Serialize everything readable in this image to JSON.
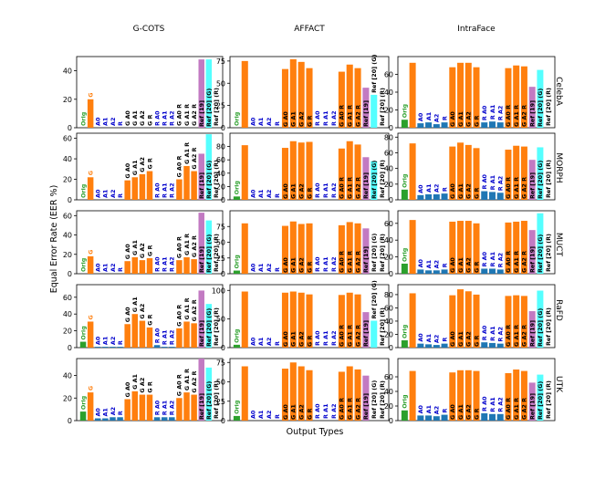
{
  "chart_data": {
    "type": "bar",
    "xlabel": "Output Types",
    "ylabel": "Equal Error Rate (EER %)",
    "columns": [
      "G-COTS",
      "AFFACT",
      "IntraFace"
    ],
    "rows": [
      "CelebA",
      "MORPH",
      "MUCT",
      "RaFD",
      "UTK"
    ],
    "categories": [
      "Orig",
      "G",
      "A0",
      "A1",
      "A2",
      "R",
      "G A0",
      "G A1",
      "G A2",
      "G R",
      "R A0",
      "R A1",
      "R A2",
      "G A0 R",
      "G A1 R",
      "G A2 R",
      "Ref [19]",
      "Ref [20] (G)",
      "Ref [20] (R)"
    ],
    "category_colors": {
      "Orig": "#2ca02c",
      "G": "#ff7f0e",
      "A0": "#1f77b4",
      "A1": "#1f77b4",
      "A2": "#1f77b4",
      "R": "#1f77b4",
      "G A0": "#ff7f0e",
      "G A1": "#ff7f0e",
      "G A2": "#ff7f0e",
      "G R": "#ff7f0e",
      "R A0": "#1f77b4",
      "R A1": "#1f77b4",
      "R A2": "#1f77b4",
      "G A0 R": "#ff7f0e",
      "G A1 R": "#ff7f0e",
      "G A2 R": "#ff7f0e",
      "Ref [19]": "#c27ac2",
      "Ref [20] (G)": "#55ffff",
      "Ref [20] (R)": "#55ffff"
    },
    "label_colors": {
      "Orig": "#2ca02c",
      "G": "#ff7f0e",
      "A0": "#0000cc",
      "A1": "#0000cc",
      "A2": "#0000cc",
      "R": "#0000cc",
      "G A0": "#000000",
      "G A1": "#000000",
      "G A2": "#000000",
      "G R": "#000000",
      "R A0": "#0000cc",
      "R A1": "#0000cc",
      "R A2": "#0000cc",
      "G A0 R": "#000000",
      "G A1 R": "#000000",
      "G A2 R": "#000000",
      "Ref [19]": "#000000",
      "Ref [20] (G)": "#000000",
      "Ref [20] (R)": "#000000"
    },
    "panels": [
      {
        "row": "CelebA",
        "col": "G-COTS",
        "ylim": [
          0,
          50
        ],
        "yticks": [
          0,
          20,
          40
        ],
        "values": [
          0,
          20,
          0,
          0,
          0,
          0,
          0,
          0,
          0,
          0,
          0,
          0,
          0,
          0,
          0,
          0,
          48,
          48,
          0
        ]
      },
      {
        "row": "CelebA",
        "col": "AFFACT",
        "ylim": [
          0,
          80
        ],
        "yticks": [
          0,
          25,
          50,
          75
        ],
        "values": [
          0,
          75,
          0,
          0,
          0,
          0,
          66,
          77,
          74,
          67,
          0,
          0,
          0,
          63,
          71,
          67,
          45,
          37,
          0
        ]
      },
      {
        "row": "CelebA",
        "col": "IntraFace",
        "ylim": [
          0,
          80
        ],
        "yticks": [
          0,
          20,
          40,
          60
        ],
        "values": [
          9,
          73,
          5,
          6,
          4,
          6,
          68,
          73,
          73,
          68,
          6,
          7,
          6,
          67,
          70,
          69,
          46,
          65,
          0
        ]
      },
      {
        "row": "MORPH",
        "col": "G-COTS",
        "ylim": [
          0,
          65
        ],
        "yticks": [
          0,
          20,
          40,
          60
        ],
        "values": [
          0,
          22,
          0,
          0,
          0,
          0,
          19,
          22,
          25,
          28,
          0,
          0,
          0,
          20,
          33,
          28,
          45,
          64,
          0
        ]
      },
      {
        "row": "MORPH",
        "col": "AFFACT",
        "ylim": [
          0,
          100
        ],
        "yticks": [
          0,
          20,
          40,
          60,
          80
        ],
        "values": [
          5,
          82,
          0,
          0,
          0,
          0,
          78,
          88,
          86,
          87,
          0,
          0,
          0,
          77,
          88,
          83,
          64,
          58,
          0
        ]
      },
      {
        "row": "MORPH",
        "col": "IntraFace",
        "ylim": [
          0,
          85
        ],
        "yticks": [
          0,
          20,
          40,
          60,
          80
        ],
        "values": [
          13,
          72,
          6,
          7,
          7,
          8,
          68,
          73,
          70,
          66,
          11,
          10,
          9,
          64,
          69,
          68,
          51,
          67,
          0
        ]
      },
      {
        "row": "MUCT",
        "col": "G-COTS",
        "ylim": [
          0,
          65
        ],
        "yticks": [
          0,
          20,
          40,
          60
        ],
        "values": [
          0,
          18,
          0,
          0,
          0,
          0,
          13,
          17,
          14,
          16,
          0,
          0,
          0,
          14,
          17,
          15,
          63,
          55,
          0
        ]
      },
      {
        "row": "MUCT",
        "col": "AFFACT",
        "ylim": [
          0,
          100
        ],
        "yticks": [
          0,
          25,
          50,
          75
        ],
        "values": [
          5,
          80,
          0,
          0,
          0,
          0,
          76,
          83,
          79,
          80,
          0,
          0,
          0,
          77,
          82,
          80,
          72,
          0,
          0
        ]
      },
      {
        "row": "MUCT",
        "col": "IntraFace",
        "ylim": [
          0,
          75
        ],
        "yticks": [
          0,
          20,
          40,
          60
        ],
        "values": [
          12,
          64,
          5,
          4,
          4,
          5,
          62,
          63,
          63,
          60,
          6,
          6,
          5,
          61,
          62,
          63,
          52,
          72,
          0
        ]
      },
      {
        "row": "RaFD",
        "col": "G-COTS",
        "ylim": [
          0,
          75
        ],
        "yticks": [
          0,
          20,
          40,
          60
        ],
        "values": [
          7,
          31,
          1,
          1,
          1,
          1,
          28,
          40,
          32,
          24,
          3,
          1,
          1,
          23,
          31,
          29,
          68,
          52,
          0
        ]
      },
      {
        "row": "RaFD",
        "col": "AFFACT",
        "ylim": [
          0,
          110
        ],
        "yticks": [
          0,
          50,
          100
        ],
        "values": [
          5,
          98,
          0,
          0,
          0,
          0,
          96,
          98,
          96,
          93,
          0,
          0,
          0,
          92,
          96,
          93,
          62,
          47,
          0
        ]
      },
      {
        "row": "RaFD",
        "col": "IntraFace",
        "ylim": [
          0,
          95
        ],
        "yticks": [
          0,
          20,
          40,
          60,
          80
        ],
        "values": [
          11,
          82,
          6,
          5,
          4,
          6,
          79,
          88,
          85,
          80,
          8,
          7,
          6,
          78,
          79,
          78,
          55,
          86,
          0
        ]
      },
      {
        "row": "UTK",
        "col": "G-COTS",
        "ylim": [
          0,
          55
        ],
        "yticks": [
          0,
          20,
          40
        ],
        "values": [
          8,
          25,
          2,
          2,
          3,
          3,
          19,
          26,
          23,
          23,
          3,
          3,
          3,
          20,
          25,
          23,
          55,
          47,
          0
        ]
      },
      {
        "row": "UTK",
        "col": "AFFACT",
        "ylim": [
          0,
          80
        ],
        "yticks": [
          0,
          25,
          50,
          75
        ],
        "values": [
          6,
          70,
          0,
          0,
          0,
          0,
          67,
          75,
          70,
          65,
          0,
          0,
          0,
          63,
          70,
          66,
          58,
          0,
          0
        ]
      },
      {
        "row": "UTK",
        "col": "IntraFace",
        "ylim": [
          0,
          85
        ],
        "yticks": [
          0,
          20,
          40,
          60
        ],
        "values": [
          14,
          68,
          7,
          7,
          6,
          8,
          66,
          69,
          69,
          68,
          10,
          9,
          9,
          65,
          70,
          68,
          52,
          63,
          0
        ]
      }
    ]
  }
}
